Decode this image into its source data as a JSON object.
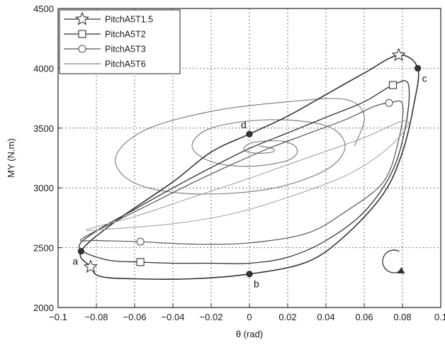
{
  "chart_data": {
    "type": "line",
    "xlabel": "θ (rad)",
    "ylabel": "MY (N.m)",
    "xlim": [
      -0.1,
      0.1
    ],
    "ylim": [
      2000,
      4500
    ],
    "xticks": [
      -0.1,
      -0.08,
      -0.06,
      -0.04,
      -0.02,
      0,
      0.02,
      0.04,
      0.06,
      0.08,
      0.1
    ],
    "yticks": [
      2000,
      2500,
      3000,
      3500,
      4000,
      4500
    ],
    "xtick_labels": [
      "−0.1",
      "−0.08",
      "−0.06",
      "−0.04",
      "−0.02",
      "0",
      "0.02",
      "0.04",
      "0.06",
      "0.08",
      "0.1"
    ],
    "ytick_labels": [
      "2000",
      "2500",
      "3000",
      "3500",
      "4000",
      "4500"
    ],
    "grid": true,
    "legend_position": "top-left",
    "rotation_direction": "clockwise",
    "series": [
      {
        "name": "PitchA5T1.5",
        "marker": "star",
        "color": "#333333",
        "points": [
          [
            -0.088,
            2470
          ],
          [
            -0.07,
            2720
          ],
          [
            -0.04,
            3050
          ],
          [
            -0.02,
            3300
          ],
          [
            0.0,
            3450
          ],
          [
            0.02,
            3600
          ],
          [
            0.04,
            3780
          ],
          [
            0.06,
            3960
          ],
          [
            0.078,
            4110
          ],
          [
            0.088,
            4000
          ],
          [
            0.086,
            3700
          ],
          [
            0.08,
            3300
          ],
          [
            0.07,
            2950
          ],
          [
            0.05,
            2600
          ],
          [
            0.03,
            2380
          ],
          [
            0.0,
            2280
          ],
          [
            -0.03,
            2240
          ],
          [
            -0.06,
            2240
          ],
          [
            -0.078,
            2260
          ],
          [
            -0.083,
            2340
          ],
          [
            -0.088,
            2470
          ]
        ],
        "marker_points": [
          [
            -0.083,
            2340
          ],
          [
            0.078,
            4110
          ]
        ]
      },
      {
        "name": "PitchA5T2",
        "marker": "square",
        "color": "#333333",
        "points": [
          [
            -0.089,
            2500
          ],
          [
            -0.08,
            2640
          ],
          [
            -0.06,
            2820
          ],
          [
            -0.04,
            3000
          ],
          [
            -0.02,
            3170
          ],
          [
            0.0,
            3330
          ],
          [
            0.02,
            3460
          ],
          [
            0.04,
            3590
          ],
          [
            0.06,
            3720
          ],
          [
            0.075,
            3860
          ],
          [
            0.083,
            3870
          ],
          [
            0.082,
            3550
          ],
          [
            0.075,
            3150
          ],
          [
            0.06,
            2800
          ],
          [
            0.04,
            2560
          ],
          [
            0.02,
            2420
          ],
          [
            0.0,
            2370
          ],
          [
            -0.02,
            2370
          ],
          [
            -0.04,
            2370
          ],
          [
            -0.057,
            2380
          ],
          [
            -0.075,
            2400
          ],
          [
            -0.089,
            2500
          ]
        ],
        "marker_points": [
          [
            -0.057,
            2380
          ],
          [
            0.075,
            3860
          ]
        ]
      },
      {
        "name": "PitchA5T3",
        "marker": "circle",
        "color": "#555555",
        "points": [
          [
            -0.088,
            2570
          ],
          [
            -0.07,
            2720
          ],
          [
            -0.05,
            2880
          ],
          [
            -0.03,
            3040
          ],
          [
            -0.01,
            3190
          ],
          [
            0.01,
            3330
          ],
          [
            0.03,
            3450
          ],
          [
            0.05,
            3570
          ],
          [
            0.065,
            3680
          ],
          [
            0.073,
            3710
          ],
          [
            0.08,
            3700
          ],
          [
            0.078,
            3400
          ],
          [
            0.07,
            3050
          ],
          [
            0.05,
            2800
          ],
          [
            0.03,
            2620
          ],
          [
            0.0,
            2540
          ],
          [
            -0.03,
            2530
          ],
          [
            -0.057,
            2550
          ],
          [
            -0.08,
            2560
          ],
          [
            -0.088,
            2570
          ]
        ],
        "marker_points": [
          [
            -0.057,
            2550
          ],
          [
            0.073,
            3710
          ]
        ]
      },
      {
        "name": "PitchA5T6",
        "marker": "none",
        "color": "#999999",
        "points": [
          [
            -0.085,
            2650
          ],
          [
            -0.06,
            2760
          ],
          [
            -0.03,
            2920
          ],
          [
            0.0,
            3080
          ],
          [
            0.03,
            3250
          ],
          [
            0.06,
            3420
          ],
          [
            0.08,
            3560
          ],
          [
            0.082,
            3500
          ],
          [
            0.07,
            3300
          ],
          [
            0.05,
            3100
          ],
          [
            0.02,
            2920
          ],
          [
            -0.01,
            2780
          ],
          [
            -0.04,
            2700
          ],
          [
            -0.07,
            2660
          ],
          [
            -0.085,
            2650
          ]
        ],
        "marker_points": []
      }
    ],
    "transient_spiral": [
      [
        0.005,
        3350
      ],
      [
        0.012,
        3330
      ],
      [
        0.012,
        3300
      ],
      [
        0.003,
        3290
      ],
      [
        -0.003,
        3320
      ],
      [
        0.002,
        3380
      ],
      [
        0.018,
        3390
      ],
      [
        0.025,
        3320
      ],
      [
        0.02,
        3230
      ],
      [
        0.0,
        3180
      ],
      [
        -0.02,
        3220
      ],
      [
        -0.03,
        3350
      ],
      [
        -0.02,
        3500
      ],
      [
        0.01,
        3570
      ],
      [
        0.04,
        3520
      ],
      [
        0.05,
        3350
      ],
      [
        0.04,
        3150
      ],
      [
        0.01,
        2990
      ],
      [
        -0.03,
        2950
      ],
      [
        -0.06,
        3040
      ],
      [
        -0.07,
        3250
      ],
      [
        -0.055,
        3480
      ],
      [
        -0.02,
        3640
      ],
      [
        0.02,
        3720
      ],
      [
        0.05,
        3740
      ],
      [
        0.06,
        3600
      ],
      [
        0.055,
        3350
      ]
    ],
    "annotated_points": [
      {
        "label": "a",
        "x": -0.088,
        "y": 2470,
        "label_side": "below-left"
      },
      {
        "label": "b",
        "x": 0.0,
        "y": 2280,
        "label_side": "below-right"
      },
      {
        "label": "c",
        "x": 0.088,
        "y": 4000,
        "label_side": "below-right"
      },
      {
        "label": "d",
        "x": 0.0,
        "y": 3450,
        "label_side": "above-left"
      }
    ]
  }
}
